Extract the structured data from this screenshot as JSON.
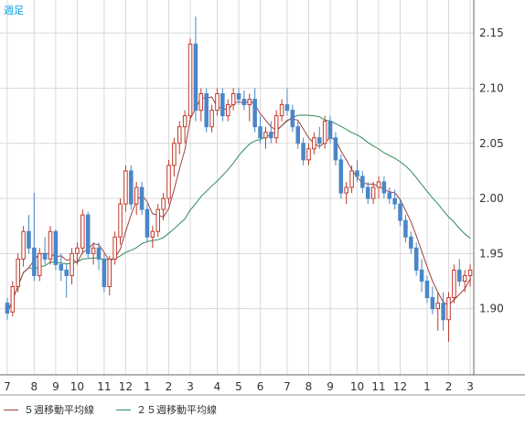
{
  "timeframe_label": "週足",
  "colors": {
    "bull": "#c0392b",
    "bear": "#4a86c8",
    "ma5": "#a04040",
    "ma25": "#2e8b57",
    "grid": "#d9d9d9",
    "axis": "#333333",
    "timeframe": "#00a0e9"
  },
  "legend": [
    {
      "label": "５週移動平均線",
      "color": "#a04040"
    },
    {
      "label": "２５週移動平均線",
      "color": "#2e8b57"
    }
  ],
  "chart_data": {
    "type": "candlestick",
    "ylim": [
      1.84,
      2.18
    ],
    "yticks": [
      "2.15",
      "2.10",
      "2.05",
      "2.00",
      "1.95",
      "1.90"
    ],
    "xticks": [
      {
        "label": "7",
        "index": 0
      },
      {
        "label": "8",
        "index": 5
      },
      {
        "label": "9",
        "index": 9
      },
      {
        "label": "10",
        "index": 13
      },
      {
        "label": "11",
        "index": 18
      },
      {
        "label": "12",
        "index": 22
      },
      {
        "label": "1",
        "index": 26
      },
      {
        "label": "2",
        "index": 30
      },
      {
        "label": "3",
        "index": 34
      },
      {
        "label": "4",
        "index": 39
      },
      {
        "label": "5",
        "index": 43
      },
      {
        "label": "6",
        "index": 47
      },
      {
        "label": "7",
        "index": 52
      },
      {
        "label": "8",
        "index": 56
      },
      {
        "label": "9",
        "index": 60
      },
      {
        "label": "10",
        "index": 65
      },
      {
        "label": "11",
        "index": 69
      },
      {
        "label": "12",
        "index": 73
      },
      {
        "label": "1",
        "index": 78
      },
      {
        "label": "2",
        "index": 82
      },
      {
        "label": "3",
        "index": 86
      }
    ],
    "candles": [
      [
        1.905,
        1.91,
        1.89,
        1.896
      ],
      [
        1.897,
        1.925,
        1.893,
        1.92
      ],
      [
        1.92,
        1.95,
        1.915,
        1.945
      ],
      [
        1.945,
        1.975,
        1.938,
        1.97
      ],
      [
        1.97,
        1.985,
        1.95,
        1.955
      ],
      [
        1.955,
        2.005,
        1.925,
        1.93
      ],
      [
        1.93,
        1.955,
        1.925,
        1.95
      ],
      [
        1.95,
        1.965,
        1.94,
        1.945
      ],
      [
        1.945,
        1.975,
        1.94,
        1.97
      ],
      [
        1.97,
        1.972,
        1.935,
        1.94
      ],
      [
        1.94,
        1.95,
        1.925,
        1.935
      ],
      [
        1.935,
        1.94,
        1.91,
        1.93
      ],
      [
        1.93,
        1.955,
        1.922,
        1.95
      ],
      [
        1.95,
        1.96,
        1.94,
        1.955
      ],
      [
        1.955,
        1.99,
        1.95,
        1.985
      ],
      [
        1.985,
        1.988,
        1.945,
        1.95
      ],
      [
        1.95,
        1.96,
        1.94,
        1.955
      ],
      [
        1.955,
        1.96,
        1.935,
        1.945
      ],
      [
        1.945,
        1.95,
        1.915,
        1.92
      ],
      [
        1.92,
        1.948,
        1.912,
        1.945
      ],
      [
        1.945,
        1.97,
        1.94,
        1.965
      ],
      [
        1.965,
        2.0,
        1.958,
        1.995
      ],
      [
        1.995,
        2.03,
        1.988,
        2.025
      ],
      [
        2.025,
        2.03,
        1.99,
        1.995
      ],
      [
        1.995,
        2.015,
        1.985,
        2.01
      ],
      [
        2.01,
        2.015,
        1.985,
        1.99
      ],
      [
        1.99,
        1.995,
        1.96,
        1.965
      ],
      [
        1.965,
        1.975,
        1.955,
        1.97
      ],
      [
        1.97,
        1.995,
        1.965,
        1.99
      ],
      [
        1.99,
        2.005,
        1.98,
        2.0
      ],
      [
        2.0,
        2.035,
        1.995,
        2.03
      ],
      [
        2.03,
        2.055,
        2.02,
        2.05
      ],
      [
        2.05,
        2.07,
        2.04,
        2.065
      ],
      [
        2.065,
        2.08,
        2.05,
        2.075
      ],
      [
        2.075,
        2.145,
        2.07,
        2.14
      ],
      [
        2.14,
        2.165,
        2.07,
        2.08
      ],
      [
        2.08,
        2.1,
        2.07,
        2.095
      ],
      [
        2.095,
        2.1,
        2.06,
        2.065
      ],
      [
        2.065,
        2.085,
        2.06,
        2.08
      ],
      [
        2.08,
        2.1,
        2.075,
        2.095
      ],
      [
        2.095,
        2.1,
        2.07,
        2.075
      ],
      [
        2.075,
        2.09,
        2.07,
        2.085
      ],
      [
        2.085,
        2.1,
        2.08,
        2.095
      ],
      [
        2.095,
        2.1,
        2.085,
        2.09
      ],
      [
        2.09,
        2.098,
        2.08,
        2.085
      ],
      [
        2.085,
        2.095,
        2.07,
        2.09
      ],
      [
        2.09,
        2.1,
        2.06,
        2.065
      ],
      [
        2.065,
        2.075,
        2.05,
        2.055
      ],
      [
        2.055,
        2.065,
        2.045,
        2.06
      ],
      [
        2.06,
        2.07,
        2.05,
        2.055
      ],
      [
        2.055,
        2.08,
        2.05,
        2.075
      ],
      [
        2.075,
        2.09,
        2.07,
        2.085
      ],
      [
        2.085,
        2.1,
        2.075,
        2.08
      ],
      [
        2.08,
        2.085,
        2.06,
        2.065
      ],
      [
        2.065,
        2.07,
        2.045,
        2.05
      ],
      [
        2.05,
        2.055,
        2.03,
        2.035
      ],
      [
        2.035,
        2.05,
        2.03,
        2.045
      ],
      [
        2.045,
        2.06,
        2.04,
        2.055
      ],
      [
        2.055,
        2.065,
        2.045,
        2.05
      ],
      [
        2.05,
        2.075,
        2.045,
        2.07
      ],
      [
        2.07,
        2.075,
        2.05,
        2.055
      ],
      [
        2.055,
        2.06,
        2.03,
        2.035
      ],
      [
        2.035,
        2.04,
        2.0,
        2.005
      ],
      [
        2.005,
        2.015,
        1.995,
        2.01
      ],
      [
        2.01,
        2.03,
        2.005,
        2.025
      ],
      [
        2.025,
        2.035,
        2.015,
        2.02
      ],
      [
        2.02,
        2.025,
        2.005,
        2.01
      ],
      [
        2.01,
        2.015,
        1.995,
        2.0
      ],
      [
        2.0,
        2.015,
        1.995,
        2.01
      ],
      [
        2.01,
        2.02,
        2.0,
        2.015
      ],
      [
        2.015,
        2.02,
        2.0,
        2.005
      ],
      [
        2.005,
        2.01,
        1.995,
        2.0
      ],
      [
        2.0,
        2.008,
        1.99,
        1.995
      ],
      [
        1.995,
        2.0,
        1.975,
        1.98
      ],
      [
        1.98,
        1.985,
        1.96,
        1.965
      ],
      [
        1.965,
        1.97,
        1.95,
        1.955
      ],
      [
        1.955,
        1.96,
        1.93,
        1.935
      ],
      [
        1.935,
        1.945,
        1.915,
        1.925
      ],
      [
        1.925,
        1.93,
        1.905,
        1.91
      ],
      [
        1.91,
        1.92,
        1.895,
        1.9
      ],
      [
        1.9,
        1.915,
        1.88,
        1.905
      ],
      [
        1.905,
        1.915,
        1.88,
        1.89
      ],
      [
        1.89,
        1.915,
        1.87,
        1.91
      ],
      [
        1.91,
        1.94,
        1.905,
        1.935
      ],
      [
        1.935,
        1.945,
        1.92,
        1.925
      ],
      [
        1.925,
        1.935,
        1.915,
        1.93
      ],
      [
        1.93,
        1.94,
        1.92,
        1.935
      ]
    ]
  }
}
